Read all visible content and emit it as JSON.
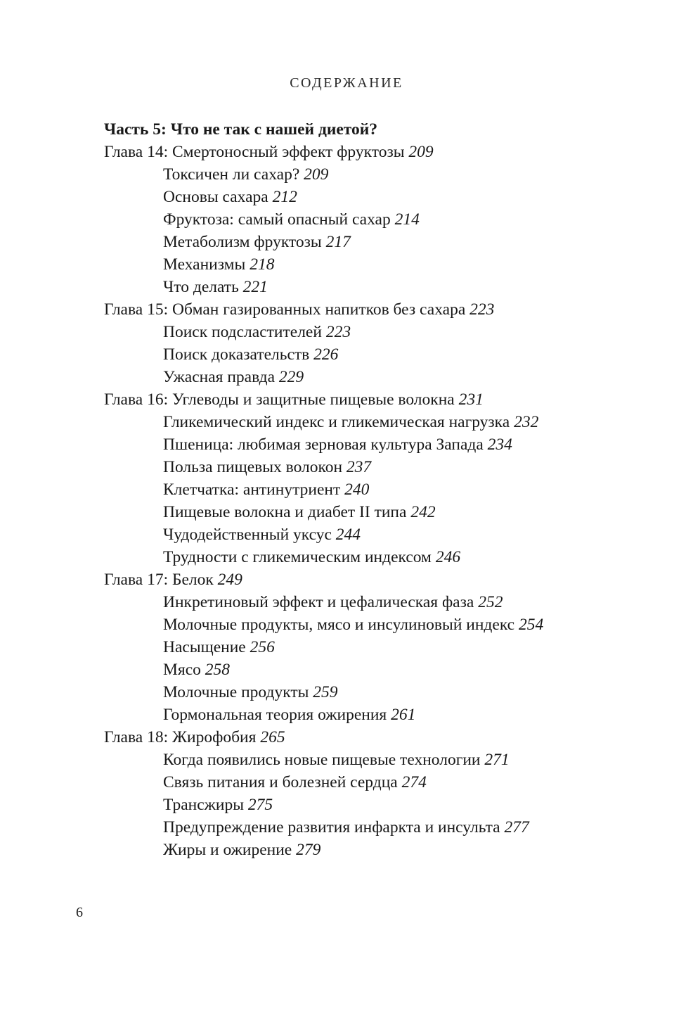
{
  "page": {
    "header": "СОДЕРЖАНИЕ",
    "page_number": "6",
    "text_color": "#191919",
    "background_color": "#ffffff"
  },
  "toc": {
    "part_heading": "Часть 5: Что не так с нашей диетой?",
    "entries": [
      {
        "level": "chapter",
        "text": "Глава 14: Смертоносный эффект фруктозы",
        "page": "209"
      },
      {
        "level": "section",
        "text": "Токсичен ли сахар?",
        "page": "209"
      },
      {
        "level": "section",
        "text": "Основы сахара",
        "page": "212"
      },
      {
        "level": "section",
        "text": "Фруктоза: самый опасный сахар",
        "page": "214"
      },
      {
        "level": "section",
        "text": "Метаболизм фруктозы",
        "page": "217"
      },
      {
        "level": "section",
        "text": "Механизмы",
        "page": "218"
      },
      {
        "level": "section",
        "text": "Что делать",
        "page": "221"
      },
      {
        "level": "chapter",
        "text": "Глава 15: Обман газированных напитков без сахара",
        "page": "223"
      },
      {
        "level": "section",
        "text": "Поиск подсластителей",
        "page": "223"
      },
      {
        "level": "section",
        "text": "Поиск доказательств",
        "page": "226"
      },
      {
        "level": "section",
        "text": "Ужасная правда",
        "page": "229"
      },
      {
        "level": "chapter",
        "text": "Глава 16: Углеводы и защитные пищевые волокна",
        "page": "231"
      },
      {
        "level": "section",
        "text": "Гликемический индекс и гликемическая нагрузка",
        "page": "232"
      },
      {
        "level": "section",
        "text": "Пшеница: любимая зерновая культура Запада",
        "page": "234"
      },
      {
        "level": "section",
        "text": "Польза пищевых волокон",
        "page": "237"
      },
      {
        "level": "section",
        "text": "Клетчатка: антинутриент",
        "page": "240"
      },
      {
        "level": "section",
        "text": "Пищевые волокна и диабет II типа",
        "page": "242"
      },
      {
        "level": "section",
        "text": "Чудодейственный уксус",
        "page": "244"
      },
      {
        "level": "section",
        "text": "Трудности с гликемическим индексом",
        "page": "246"
      },
      {
        "level": "chapter",
        "text": "Глава 17: Белок",
        "page": "249"
      },
      {
        "level": "section",
        "text": "Инкретиновый эффект и цефалическая фаза",
        "page": "252"
      },
      {
        "level": "section",
        "text": "Молочные продукты, мясо и инсулиновый индекс",
        "page": "254"
      },
      {
        "level": "section",
        "text": "Насыщение",
        "page": "256"
      },
      {
        "level": "section",
        "text": "Мясо",
        "page": "258"
      },
      {
        "level": "section",
        "text": "Молочные продукты",
        "page": "259"
      },
      {
        "level": "section",
        "text": "Гормональная теория ожирения",
        "page": "261"
      },
      {
        "level": "chapter",
        "text": "Глава 18: Жирофобия",
        "page": "265"
      },
      {
        "level": "section",
        "text": "Когда появились новые пищевые технологии",
        "page": "271"
      },
      {
        "level": "section",
        "text": "Связь питания и болезней сердца",
        "page": "274"
      },
      {
        "level": "section",
        "text": "Трансжиры",
        "page": "275"
      },
      {
        "level": "section",
        "text": "Предупреждение развития инфаркта и инсульта",
        "page": "277"
      },
      {
        "level": "section",
        "text": "Жиры и ожирение",
        "page": "279"
      }
    ]
  }
}
